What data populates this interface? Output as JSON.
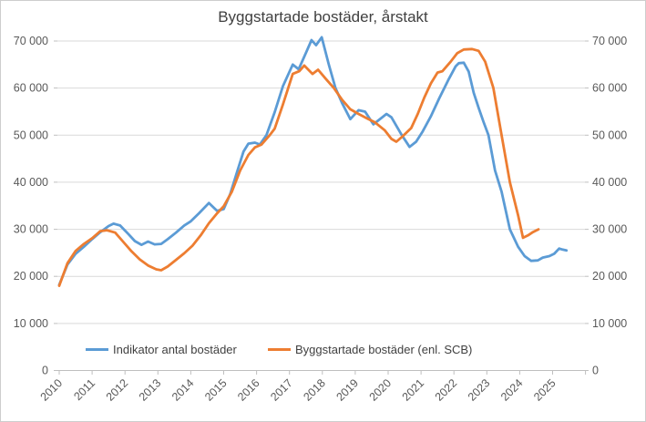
{
  "chart_data": {
    "type": "line",
    "title": "Byggstartade bostäder, årstakt",
    "xlabel": "",
    "ylabel": "",
    "x_unit": "decimal-year",
    "x_tick_labels": [
      "2010",
      "2011",
      "2012",
      "2013",
      "2014",
      "2015",
      "2016",
      "2017",
      "2018",
      "2019",
      "2020",
      "2021",
      "2022",
      "2023",
      "2024",
      "2025"
    ],
    "y_ticks": [
      0,
      10000,
      20000,
      30000,
      40000,
      50000,
      60000,
      70000
    ],
    "y_tick_labels": [
      "0",
      "10 000",
      "20 000",
      "30 000",
      "40 000",
      "50 000",
      "60 000",
      "70 000"
    ],
    "ylim": [
      0,
      70000
    ],
    "dual_y_axis": true,
    "grid": "horizontal",
    "legend_position": "bottom-inside",
    "style": {
      "gridline": "#D9D9D9",
      "axis_line": "#BFBFBF",
      "tick_text": "#595959",
      "title_text": "#404040",
      "frame_border": "#CDCDCD",
      "background": "#FFFFFF"
    },
    "series": [
      {
        "id": "indikator",
        "name": "Indikator antal bostäder",
        "color": "#5B9BD5",
        "points": [
          [
            2010.0,
            18200
          ],
          [
            2010.25,
            22500
          ],
          [
            2010.5,
            24800
          ],
          [
            2010.75,
            26300
          ],
          [
            2011.0,
            27900
          ],
          [
            2011.25,
            29400
          ],
          [
            2011.5,
            30700
          ],
          [
            2011.65,
            31200
          ],
          [
            2011.85,
            30800
          ],
          [
            2012.1,
            29000
          ],
          [
            2012.3,
            27500
          ],
          [
            2012.5,
            26700
          ],
          [
            2012.7,
            27400
          ],
          [
            2012.9,
            26800
          ],
          [
            2013.1,
            26900
          ],
          [
            2013.3,
            27900
          ],
          [
            2013.55,
            29300
          ],
          [
            2013.8,
            30800
          ],
          [
            2014.0,
            31700
          ],
          [
            2014.25,
            33400
          ],
          [
            2014.55,
            35600
          ],
          [
            2014.8,
            33900
          ],
          [
            2015.0,
            34300
          ],
          [
            2015.2,
            37500
          ],
          [
            2015.4,
            42000
          ],
          [
            2015.6,
            46500
          ],
          [
            2015.75,
            48200
          ],
          [
            2015.95,
            48400
          ],
          [
            2016.1,
            48000
          ],
          [
            2016.3,
            50000
          ],
          [
            2016.55,
            54900
          ],
          [
            2016.8,
            60400
          ],
          [
            2017.1,
            65000
          ],
          [
            2017.28,
            64000
          ],
          [
            2017.5,
            67500
          ],
          [
            2017.67,
            70200
          ],
          [
            2017.81,
            69100
          ],
          [
            2017.98,
            70800
          ],
          [
            2018.2,
            64900
          ],
          [
            2018.4,
            60000
          ],
          [
            2018.6,
            56800
          ],
          [
            2018.85,
            53400
          ],
          [
            2019.1,
            55300
          ],
          [
            2019.3,
            55000
          ],
          [
            2019.55,
            52300
          ],
          [
            2019.95,
            54500
          ],
          [
            2020.1,
            53800
          ],
          [
            2020.4,
            50200
          ],
          [
            2020.65,
            47500
          ],
          [
            2020.85,
            48600
          ],
          [
            2021.05,
            50800
          ],
          [
            2021.3,
            54000
          ],
          [
            2021.55,
            57800
          ],
          [
            2021.85,
            62000
          ],
          [
            2022.05,
            64600
          ],
          [
            2022.15,
            65300
          ],
          [
            2022.3,
            65400
          ],
          [
            2022.45,
            63500
          ],
          [
            2022.6,
            59000
          ],
          [
            2022.75,
            55800
          ],
          [
            2022.9,
            52800
          ],
          [
            2023.05,
            50000
          ],
          [
            2023.25,
            42500
          ],
          [
            2023.45,
            38000
          ],
          [
            2023.7,
            30000
          ],
          [
            2023.95,
            26300
          ],
          [
            2024.15,
            24300
          ],
          [
            2024.35,
            23300
          ],
          [
            2024.55,
            23400
          ],
          [
            2024.7,
            24000
          ],
          [
            2024.9,
            24300
          ],
          [
            2025.05,
            24800
          ],
          [
            2025.2,
            25900
          ],
          [
            2025.3,
            25700
          ],
          [
            2025.42,
            25500
          ]
        ]
      },
      {
        "id": "scb",
        "name": "Byggstartade bostäder (enl. SCB)",
        "color": "#ED7D31",
        "points": [
          [
            2010.0,
            18000
          ],
          [
            2010.25,
            22800
          ],
          [
            2010.5,
            25400
          ],
          [
            2010.75,
            26900
          ],
          [
            2011.0,
            28100
          ],
          [
            2011.25,
            29600
          ],
          [
            2011.45,
            29800
          ],
          [
            2011.7,
            29300
          ],
          [
            2011.95,
            27300
          ],
          [
            2012.2,
            25300
          ],
          [
            2012.45,
            23600
          ],
          [
            2012.7,
            22300
          ],
          [
            2012.95,
            21500
          ],
          [
            2013.1,
            21300
          ],
          [
            2013.3,
            22100
          ],
          [
            2013.55,
            23500
          ],
          [
            2013.8,
            24900
          ],
          [
            2014.05,
            26500
          ],
          [
            2014.3,
            28700
          ],
          [
            2014.55,
            31300
          ],
          [
            2014.8,
            33400
          ],
          [
            2015.0,
            34900
          ],
          [
            2015.25,
            38000
          ],
          [
            2015.5,
            42500
          ],
          [
            2015.75,
            45800
          ],
          [
            2015.95,
            47400
          ],
          [
            2016.15,
            48000
          ],
          [
            2016.4,
            50000
          ],
          [
            2016.55,
            51400
          ],
          [
            2016.8,
            56500
          ],
          [
            2017.1,
            63000
          ],
          [
            2017.2,
            63300
          ],
          [
            2017.3,
            63600
          ],
          [
            2017.45,
            64800
          ],
          [
            2017.7,
            63000
          ],
          [
            2017.87,
            63900
          ],
          [
            2018.1,
            62000
          ],
          [
            2018.35,
            60000
          ],
          [
            2018.6,
            57500
          ],
          [
            2018.85,
            55500
          ],
          [
            2019.1,
            54500
          ],
          [
            2019.35,
            53600
          ],
          [
            2019.6,
            52700
          ],
          [
            2019.9,
            51000
          ],
          [
            2020.1,
            49200
          ],
          [
            2020.25,
            48600
          ],
          [
            2020.45,
            49800
          ],
          [
            2020.7,
            51500
          ],
          [
            2020.9,
            54500
          ],
          [
            2021.1,
            58000
          ],
          [
            2021.3,
            61000
          ],
          [
            2021.5,
            63300
          ],
          [
            2021.65,
            63600
          ],
          [
            2021.9,
            65600
          ],
          [
            2022.1,
            67400
          ],
          [
            2022.3,
            68200
          ],
          [
            2022.55,
            68300
          ],
          [
            2022.75,
            67900
          ],
          [
            2022.95,
            65600
          ],
          [
            2023.2,
            60000
          ],
          [
            2023.45,
            50000
          ],
          [
            2023.7,
            40000
          ],
          [
            2023.95,
            33000
          ],
          [
            2024.1,
            28200
          ],
          [
            2024.25,
            28700
          ],
          [
            2024.4,
            29400
          ],
          [
            2024.57,
            30000
          ]
        ]
      }
    ]
  }
}
